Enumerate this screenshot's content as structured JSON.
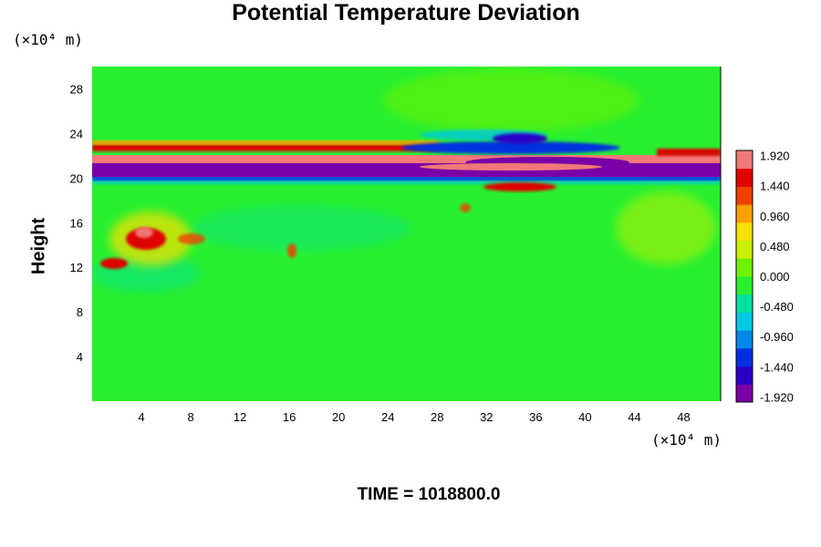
{
  "chart_data": {
    "type": "heatmap",
    "title": "Potential Temperature Deviation",
    "ylabel": "Height",
    "xunit": "(×10⁴ m)",
    "yunit": "(×10⁴ m)",
    "xlim": [
      0,
      51
    ],
    "ylim": [
      0,
      30
    ],
    "x_ticks": [
      "4",
      "8",
      "12",
      "16",
      "20",
      "24",
      "28",
      "32",
      "36",
      "40",
      "44",
      "48"
    ],
    "y_ticks": [
      "4",
      "8",
      "12",
      "16",
      "20",
      "24",
      "28"
    ],
    "colorbar": {
      "range": [
        -2.0,
        2.0
      ],
      "labels": [
        "1.920",
        "1.440",
        "0.960",
        "0.480",
        "0.000",
        "-0.480",
        "-0.960",
        "-1.440",
        "-1.920"
      ],
      "colors": [
        "#7a00a8",
        "#2a00c8",
        "#0030e0",
        "#0088e8",
        "#00c8e0",
        "#00e0a0",
        "#28f030",
        "#70f000",
        "#c8f000",
        "#f8e000",
        "#f8a000",
        "#f04000",
        "#e00000",
        "#f07878"
      ]
    },
    "features": [
      {
        "feature": "negative band",
        "height": [
          19.6,
          21.0
        ],
        "value": -2.0
      },
      {
        "feature": "positive band",
        "height": [
          21.0,
          21.8
        ],
        "value": 1.9
      },
      {
        "feature": "positive band",
        "height": [
          22.0,
          23.2
        ],
        "value": 1.5
      },
      {
        "feature": "warm anomaly",
        "x": [
          1,
          10
        ],
        "height": [
          12,
          17
        ],
        "value": 1.6
      },
      {
        "feature": "wave disturbance",
        "x": [
          27,
          50
        ],
        "height": [
          19,
          25
        ],
        "value": -1.5
      }
    ],
    "background_value": 0.0,
    "footer": "TIME = 1018800.0"
  }
}
